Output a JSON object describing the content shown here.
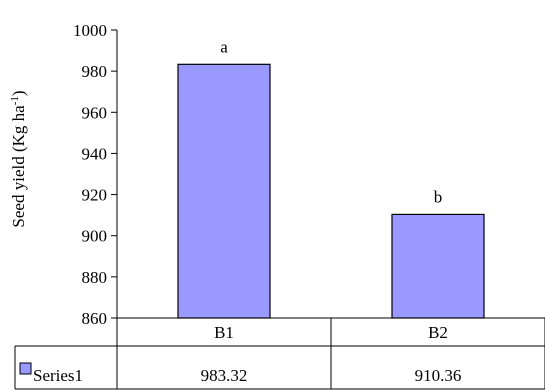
{
  "chart_data": {
    "type": "bar",
    "categories": [
      "B1",
      "B2"
    ],
    "series": [
      {
        "name": "Series1",
        "values": [
          983.32,
          910.36
        ],
        "color": "#9999ff"
      }
    ],
    "significance_letters": [
      "a",
      "b"
    ],
    "ylabel_main": "Seed yield (Kg ha",
    "ylabel_sup": "-1",
    "ylabel_close": ")",
    "ylim": [
      860,
      1000
    ],
    "y_ticks": [
      860,
      880,
      900,
      920,
      940,
      960,
      980,
      1000
    ],
    "table_values": [
      "983.32",
      "910.36"
    ],
    "grid": false,
    "legend": "data-table"
  }
}
